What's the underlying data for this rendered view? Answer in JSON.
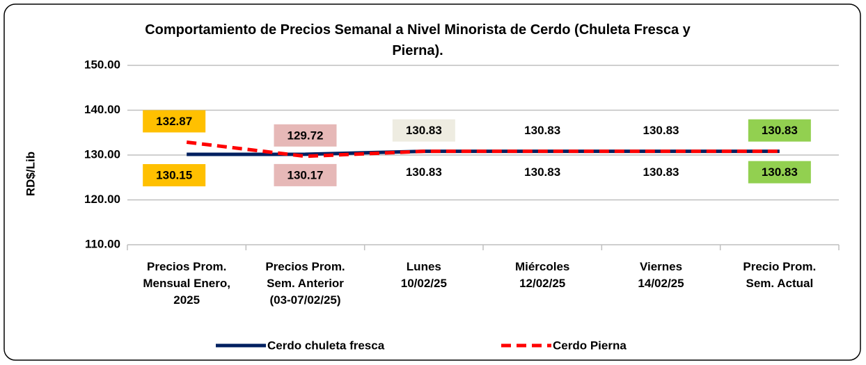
{
  "chart_data": {
    "type": "line",
    "title": "Comportamiento de Precios Semanal a Nivel Minorista de Cerdo (Chuleta Fresca y Pierna).",
    "y_label": "RD$/Lib",
    "categories": [
      "Precios Prom.\nMensual Enero,\n2025",
      "Precios Prom.\nSem. Anterior\n(03-07/02/25)",
      "Lunes\n10/02/25",
      "Miércoles\n12/02/25",
      "Viernes\n14/02/25",
      "Precio Prom.\nSem. Actual"
    ],
    "series": [
      {
        "name": "Cerdo chuleta fresca",
        "color": "#002060",
        "dash": false,
        "label_position": "below",
        "values": [
          130.15,
          130.17,
          130.83,
          130.83,
          130.83,
          130.83
        ],
        "label_backgrounds": [
          "#ffc000",
          "#e6b8b7",
          null,
          null,
          null,
          "#92d050"
        ]
      },
      {
        "name": "Cerdo Pierna",
        "color": "#ff0000",
        "dash": true,
        "label_position": "above",
        "values": [
          132.87,
          129.72,
          130.83,
          130.83,
          130.83,
          130.83
        ],
        "label_backgrounds": [
          "#ffc000",
          "#e6b8b7",
          "#eeece1",
          null,
          null,
          "#92d050"
        ]
      }
    ],
    "ylim": [
      110,
      150
    ],
    "yticks": [
      {
        "value": 110,
        "label": "110.00"
      },
      {
        "value": 120,
        "label": "120.00"
      },
      {
        "value": 130,
        "label": "130.00"
      },
      {
        "value": 140,
        "label": "140.00"
      },
      {
        "value": 150,
        "label": "150.00"
      }
    ],
    "grid": true,
    "legend": "bottom"
  }
}
